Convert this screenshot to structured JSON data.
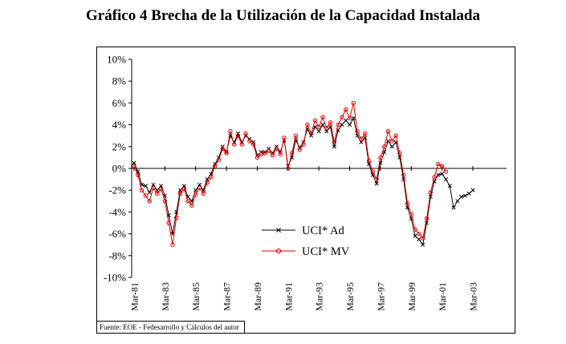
{
  "page": {
    "title": "Gráfico 4 Brecha de la Utilización de la Capacidad Instalada",
    "source_note": "Fuente: EOE - Fedesarrollo y Cálculos del autor"
  },
  "chart_data": {
    "type": "line",
    "title": "Gráfico 4 Brecha de la Utilización de la Capacidad Instalada",
    "frequency": "quarterly",
    "x_tick_labels": [
      "Mar-81",
      "Mar-83",
      "Mar-85",
      "Mar-87",
      "Mar-89",
      "Mar-91",
      "Mar-93",
      "Mar-95",
      "Mar-97",
      "Mar-99",
      "Mar-01",
      "Mar-03"
    ],
    "x_tick_every": 8,
    "ylim": [
      -10,
      10
    ],
    "y_tick_step": 2,
    "y_tick_labels": [
      "10%",
      "8%",
      "6%",
      "4%",
      "2%",
      "0%",
      "-2%",
      "-4%",
      "-6%",
      "-8%",
      "-10%"
    ],
    "grid": false,
    "legend_position": "inside-bottom-center",
    "series": [
      {
        "name": "UCI* Ad",
        "color": "#000000",
        "marker": "x",
        "values": [
          0.5,
          -0.3,
          -1.5,
          -1.6,
          -2.2,
          -1.5,
          -2.0,
          -1.6,
          -2.5,
          -4.3,
          -6.0,
          -4.0,
          -2.0,
          -1.6,
          -2.6,
          -3.0,
          -2.0,
          -1.5,
          -2.0,
          -1.0,
          -0.5,
          0.4,
          1.0,
          2.0,
          1.5,
          3.0,
          2.4,
          3.2,
          2.4,
          3.0,
          2.7,
          2.4,
          1.2,
          1.5,
          1.5,
          1.8,
          1.4,
          2.0,
          1.5,
          2.6,
          0.2,
          1.0,
          2.6,
          1.9,
          2.4,
          3.6,
          3.0,
          3.8,
          3.4,
          4.0,
          3.4,
          3.8,
          2.0,
          3.5,
          4.0,
          4.4,
          4.0,
          4.6,
          3.0,
          2.4,
          2.8,
          0.4,
          -0.6,
          -1.4,
          0.5,
          1.5,
          2.5,
          2.0,
          2.4,
          1.0,
          -1.0,
          -3.6,
          -4.6,
          -6.2,
          -6.5,
          -7.0,
          -5.0,
          -2.6,
          -1.2,
          -0.6,
          -0.5,
          -1.0,
          -1.6,
          -3.6,
          -3.0,
          -2.6,
          -2.5,
          -2.3,
          -2.0
        ]
      },
      {
        "name": "UCI* MV",
        "color": "#dd0000",
        "marker": "circle",
        "values": [
          0.2,
          -0.6,
          -2.0,
          -2.5,
          -3.0,
          -1.8,
          -2.3,
          -1.9,
          -3.0,
          -5.0,
          -7.0,
          -4.5,
          -2.3,
          -1.9,
          -3.0,
          -3.4,
          -2.4,
          -1.8,
          -2.3,
          -1.3,
          -0.8,
          0.2,
          0.8,
          1.8,
          1.4,
          3.4,
          2.2,
          3.0,
          2.2,
          3.2,
          2.5,
          2.2,
          1.0,
          1.3,
          1.4,
          1.6,
          1.2,
          1.8,
          1.3,
          2.8,
          0.0,
          1.4,
          3.0,
          1.7,
          2.2,
          4.0,
          3.2,
          4.4,
          3.8,
          4.7,
          3.7,
          4.2,
          2.4,
          4.0,
          4.7,
          5.4,
          4.6,
          6.0,
          3.4,
          2.7,
          3.2,
          0.7,
          -0.3,
          -1.0,
          1.0,
          2.0,
          3.4,
          2.5,
          3.0,
          1.4,
          -0.6,
          -3.2,
          -4.2,
          -5.6,
          -6.0,
          -6.4,
          -4.6,
          -2.2,
          -0.8,
          0.4,
          0.2,
          -0.3,
          null,
          null,
          null,
          null,
          null,
          null,
          null
        ]
      }
    ]
  }
}
